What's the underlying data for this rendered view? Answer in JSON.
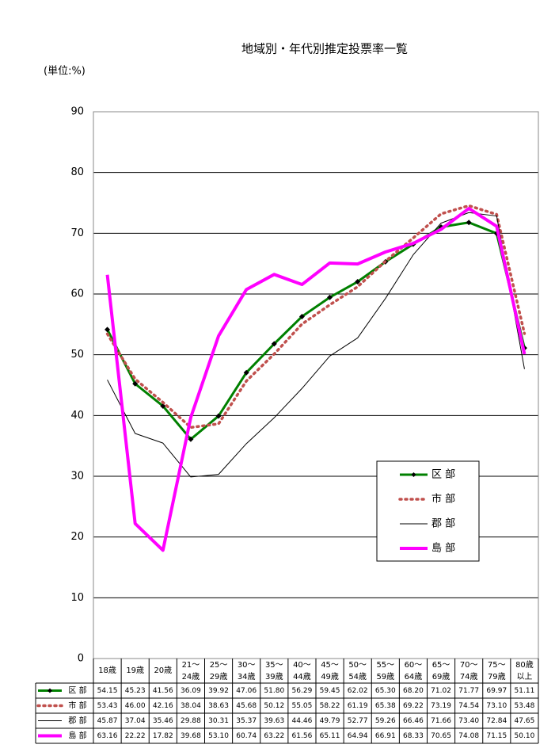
{
  "chart_data": {
    "type": "line",
    "title": "地域別・年代別推定投票率一覧",
    "unit_label": "(単位:%)",
    "categories": [
      "18歳",
      "19歳",
      "20歳",
      "21～\n24歳",
      "25～\n29歳",
      "30～\n34歳",
      "35～\n39歳",
      "40～\n44歳",
      "45～\n49歳",
      "50～\n54歳",
      "55～\n59歳",
      "60～\n64歳",
      "65～\n69歳",
      "70～\n74歳",
      "75～\n79歳",
      "80歳\n以上"
    ],
    "ylim": [
      0,
      90
    ],
    "yticks": [
      0,
      10,
      20,
      30,
      40,
      50,
      60,
      70,
      80,
      90
    ],
    "grid": true,
    "legend": "lower right",
    "series": [
      {
        "name": "区 部",
        "color": "#008000",
        "style": "solid-markers",
        "values": [
          54.15,
          45.23,
          41.56,
          36.09,
          39.92,
          47.06,
          51.8,
          56.29,
          59.45,
          62.02,
          65.3,
          68.2,
          71.02,
          71.77,
          69.97,
          51.11
        ],
        "value_labels": [
          "54.15",
          "45.23",
          "41.56",
          "36.09",
          "39.92",
          "47.06",
          "51.80",
          "56.29",
          "59.45",
          "62.02",
          "65.30",
          "68.20",
          "71.02",
          "71.77",
          "69.97",
          "51.11"
        ]
      },
      {
        "name": "市 部",
        "color": "#c0504d",
        "style": "dotted",
        "values": [
          53.43,
          46,
          42.16,
          38.04,
          38.63,
          45.68,
          50.12,
          55.05,
          58.22,
          61.19,
          65.38,
          69.22,
          73.19,
          74.54,
          73.1,
          53.48
        ],
        "value_labels": [
          "53.43",
          "46.00",
          "42.16",
          "38.04",
          "38.63",
          "45.68",
          "50.12",
          "55.05",
          "58.22",
          "61.19",
          "65.38",
          "69.22",
          "73.19",
          "74.54",
          "73.10",
          "53.48"
        ]
      },
      {
        "name": "郡 部",
        "color": "#000000",
        "style": "thin",
        "values": [
          45.87,
          37.04,
          35.46,
          29.88,
          30.31,
          35.37,
          39.63,
          44.46,
          49.79,
          52.77,
          59.26,
          66.46,
          71.66,
          73.4,
          72.84,
          47.65
        ],
        "value_labels": [
          "45.87",
          "37.04",
          "35.46",
          "29.88",
          "30.31",
          "35.37",
          "39.63",
          "44.46",
          "49.79",
          "52.77",
          "59.26",
          "66.46",
          "71.66",
          "73.40",
          "72.84",
          "47.65"
        ]
      },
      {
        "name": "島 部",
        "color": "#ff00ff",
        "style": "thick",
        "values": [
          63.16,
          22.22,
          17.82,
          39.68,
          53.1,
          60.74,
          63.22,
          61.56,
          65.11,
          64.94,
          66.91,
          68.33,
          70.65,
          74.08,
          71.15,
          50.1
        ],
        "value_labels": [
          "63.16",
          "22.22",
          "17.82",
          "39.68",
          "53.10",
          "60.74",
          "63.22",
          "61.56",
          "65.11",
          "64.94",
          "66.91",
          "68.33",
          "70.65",
          "74.08",
          "71.15",
          "50.10"
        ]
      }
    ]
  }
}
